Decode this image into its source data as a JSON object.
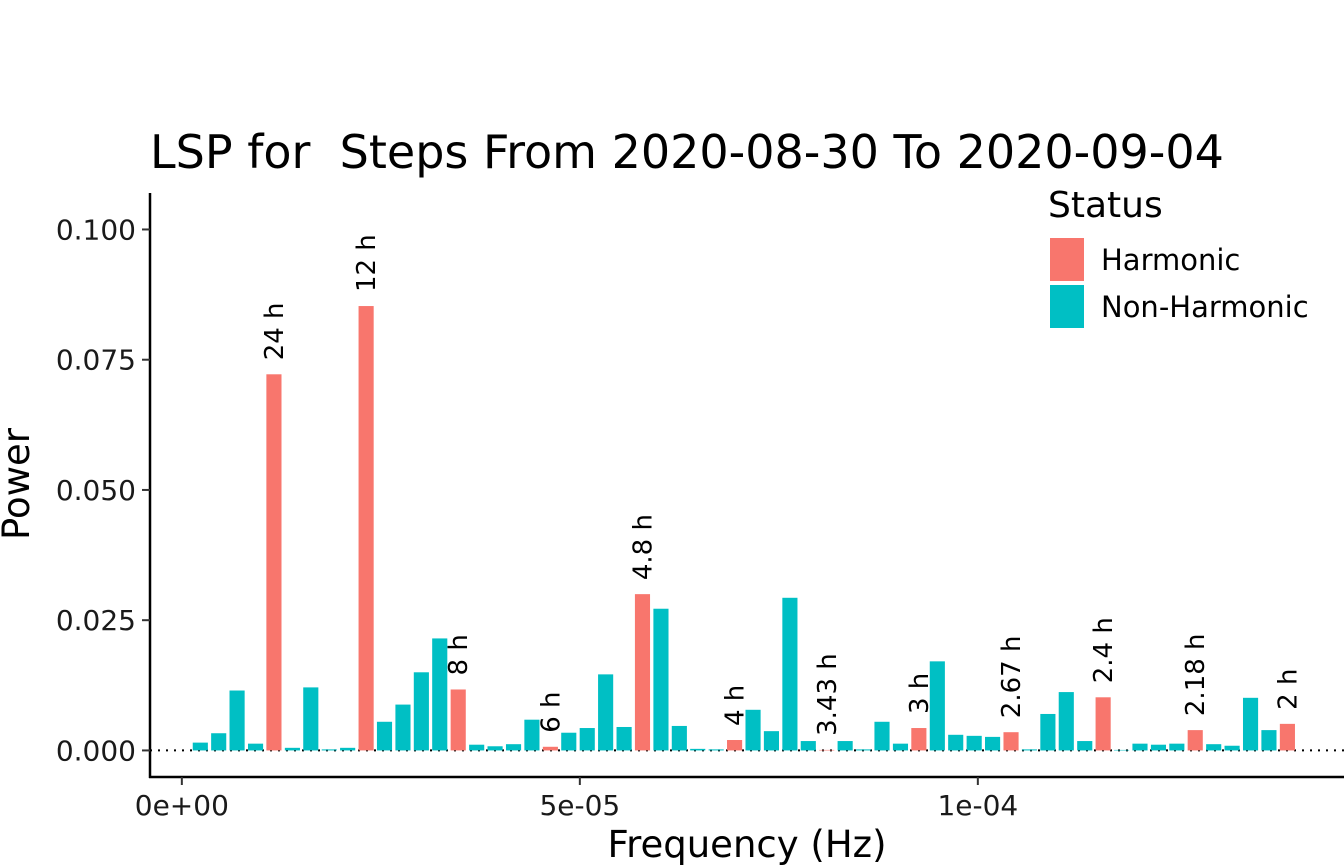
{
  "chart_data": {
    "type": "bar",
    "title": "LSP for  Steps From 2020-08-30 To 2020-09-04",
    "xlabel": "Frequency (Hz)",
    "ylabel": "Power",
    "xlim": [
      -4e-06,
      0.000146
    ],
    "ylim": [
      -0.0051,
      0.107
    ],
    "x_ticks": [
      {
        "value": 0,
        "label": "0e+00"
      },
      {
        "value": 5e-05,
        "label": "5e-05"
      },
      {
        "value": 0.0001,
        "label": "1e-04"
      }
    ],
    "y_ticks": [
      {
        "value": 0,
        "label": "0.000"
      },
      {
        "value": 0.025,
        "label": "0.025"
      },
      {
        "value": 0.05,
        "label": "0.050"
      },
      {
        "value": 0.075,
        "label": "0.075"
      },
      {
        "value": 0.1,
        "label": "0.100"
      }
    ],
    "baseline": {
      "value": 0,
      "style": "dotted"
    },
    "grid": false,
    "legend": {
      "title": "Status",
      "position": "top-right",
      "entries": [
        {
          "name": "Harmonic",
          "color": "#F8766D"
        },
        {
          "name": "Non-Harmonic",
          "color": "#00BFC4"
        }
      ]
    },
    "colors": {
      "Harmonic": "#F8766D",
      "Non-Harmonic": "#00BFC4"
    },
    "bar_width": 1.9e-06,
    "bars": [
      {
        "x": 2.32e-06,
        "value": 0.0015,
        "status": "Non-Harmonic"
      },
      {
        "x": 4.63e-06,
        "value": 0.0033,
        "status": "Non-Harmonic"
      },
      {
        "x": 6.94e-06,
        "value": 0.0115,
        "status": "Non-Harmonic"
      },
      {
        "x": 9.26e-06,
        "value": 0.0013,
        "status": "Non-Harmonic"
      },
      {
        "x": 1.157e-05,
        "value": 0.0722,
        "status": "Harmonic",
        "label": "24 h"
      },
      {
        "x": 1.389e-05,
        "value": 0.0005,
        "status": "Non-Harmonic"
      },
      {
        "x": 1.62e-05,
        "value": 0.0121,
        "status": "Non-Harmonic"
      },
      {
        "x": 1.852e-05,
        "value": 0.0002,
        "status": "Non-Harmonic"
      },
      {
        "x": 2.083e-05,
        "value": 0.0005,
        "status": "Non-Harmonic"
      },
      {
        "x": 2.315e-05,
        "value": 0.0853,
        "status": "Harmonic",
        "label": "12 h"
      },
      {
        "x": 2.546e-05,
        "value": 0.0055,
        "status": "Non-Harmonic"
      },
      {
        "x": 2.778e-05,
        "value": 0.0088,
        "status": "Non-Harmonic"
      },
      {
        "x": 3.009e-05,
        "value": 0.015,
        "status": "Non-Harmonic"
      },
      {
        "x": 3.24e-05,
        "value": 0.0215,
        "status": "Non-Harmonic"
      },
      {
        "x": 3.472e-05,
        "value": 0.0117,
        "status": "Harmonic",
        "label": "8 h"
      },
      {
        "x": 3.704e-05,
        "value": 0.0011,
        "status": "Non-Harmonic"
      },
      {
        "x": 3.935e-05,
        "value": 0.0008,
        "status": "Non-Harmonic"
      },
      {
        "x": 4.167e-05,
        "value": 0.0012,
        "status": "Non-Harmonic"
      },
      {
        "x": 4.398e-05,
        "value": 0.0059,
        "status": "Non-Harmonic"
      },
      {
        "x": 4.63e-05,
        "value": 0.0007,
        "status": "Harmonic",
        "label": "6 h"
      },
      {
        "x": 4.861e-05,
        "value": 0.0034,
        "status": "Non-Harmonic"
      },
      {
        "x": 5.093e-05,
        "value": 0.0043,
        "status": "Non-Harmonic"
      },
      {
        "x": 5.324e-05,
        "value": 0.0146,
        "status": "Non-Harmonic"
      },
      {
        "x": 5.556e-05,
        "value": 0.0045,
        "status": "Non-Harmonic"
      },
      {
        "x": 5.787e-05,
        "value": 0.03,
        "status": "Harmonic",
        "label": "4.8 h"
      },
      {
        "x": 6.019e-05,
        "value": 0.0272,
        "status": "Non-Harmonic"
      },
      {
        "x": 6.25e-05,
        "value": 0.0047,
        "status": "Non-Harmonic"
      },
      {
        "x": 6.481e-05,
        "value": 0.0003,
        "status": "Non-Harmonic"
      },
      {
        "x": 6.713e-05,
        "value": 0.0002,
        "status": "Non-Harmonic"
      },
      {
        "x": 6.944e-05,
        "value": 0.002,
        "status": "Harmonic",
        "label": "4 h"
      },
      {
        "x": 7.176e-05,
        "value": 0.0078,
        "status": "Non-Harmonic"
      },
      {
        "x": 7.407e-05,
        "value": 0.0037,
        "status": "Non-Harmonic"
      },
      {
        "x": 7.639e-05,
        "value": 0.0293,
        "status": "Non-Harmonic"
      },
      {
        "x": 7.87e-05,
        "value": 0.0018,
        "status": "Non-Harmonic"
      },
      {
        "x": 8.102e-05,
        "value": 0.0001,
        "status": "Harmonic",
        "label": "3.43 h"
      },
      {
        "x": 8.333e-05,
        "value": 0.0018,
        "status": "Non-Harmonic"
      },
      {
        "x": 8.565e-05,
        "value": 0.0002,
        "status": "Non-Harmonic"
      },
      {
        "x": 8.796e-05,
        "value": 0.0055,
        "status": "Non-Harmonic"
      },
      {
        "x": 9.028e-05,
        "value": 0.0013,
        "status": "Non-Harmonic"
      },
      {
        "x": 9.259e-05,
        "value": 0.0043,
        "status": "Harmonic",
        "label": "3 h"
      },
      {
        "x": 9.491e-05,
        "value": 0.0171,
        "status": "Non-Harmonic"
      },
      {
        "x": 9.722e-05,
        "value": 0.003,
        "status": "Non-Harmonic"
      },
      {
        "x": 9.954e-05,
        "value": 0.0028,
        "status": "Non-Harmonic"
      },
      {
        "x": 0.00010185,
        "value": 0.0026,
        "status": "Non-Harmonic"
      },
      {
        "x": 0.00010417,
        "value": 0.0035,
        "status": "Harmonic",
        "label": "2.67 h"
      },
      {
        "x": 0.00010648,
        "value": 0.0002,
        "status": "Non-Harmonic"
      },
      {
        "x": 0.0001088,
        "value": 0.007,
        "status": "Non-Harmonic"
      },
      {
        "x": 0.00011111,
        "value": 0.0112,
        "status": "Non-Harmonic"
      },
      {
        "x": 0.00011343,
        "value": 0.0018,
        "status": "Non-Harmonic"
      },
      {
        "x": 0.00011574,
        "value": 0.0102,
        "status": "Harmonic",
        "label": "2.4 h"
      },
      {
        "x": 0.00011806,
        "value": 0.0001,
        "status": "Non-Harmonic"
      },
      {
        "x": 0.00012037,
        "value": 0.0013,
        "status": "Non-Harmonic"
      },
      {
        "x": 0.00012269,
        "value": 0.0011,
        "status": "Non-Harmonic"
      },
      {
        "x": 0.000125,
        "value": 0.0013,
        "status": "Non-Harmonic"
      },
      {
        "x": 0.00012731,
        "value": 0.0039,
        "status": "Harmonic",
        "label": "2.18 h"
      },
      {
        "x": 0.00012963,
        "value": 0.0012,
        "status": "Non-Harmonic"
      },
      {
        "x": 0.00013194,
        "value": 0.0009,
        "status": "Non-Harmonic"
      },
      {
        "x": 0.00013426,
        "value": 0.0101,
        "status": "Non-Harmonic"
      },
      {
        "x": 0.00013657,
        "value": 0.0039,
        "status": "Non-Harmonic"
      },
      {
        "x": 0.00013889,
        "value": 0.0051,
        "status": "Harmonic",
        "label": "2 h"
      }
    ]
  }
}
